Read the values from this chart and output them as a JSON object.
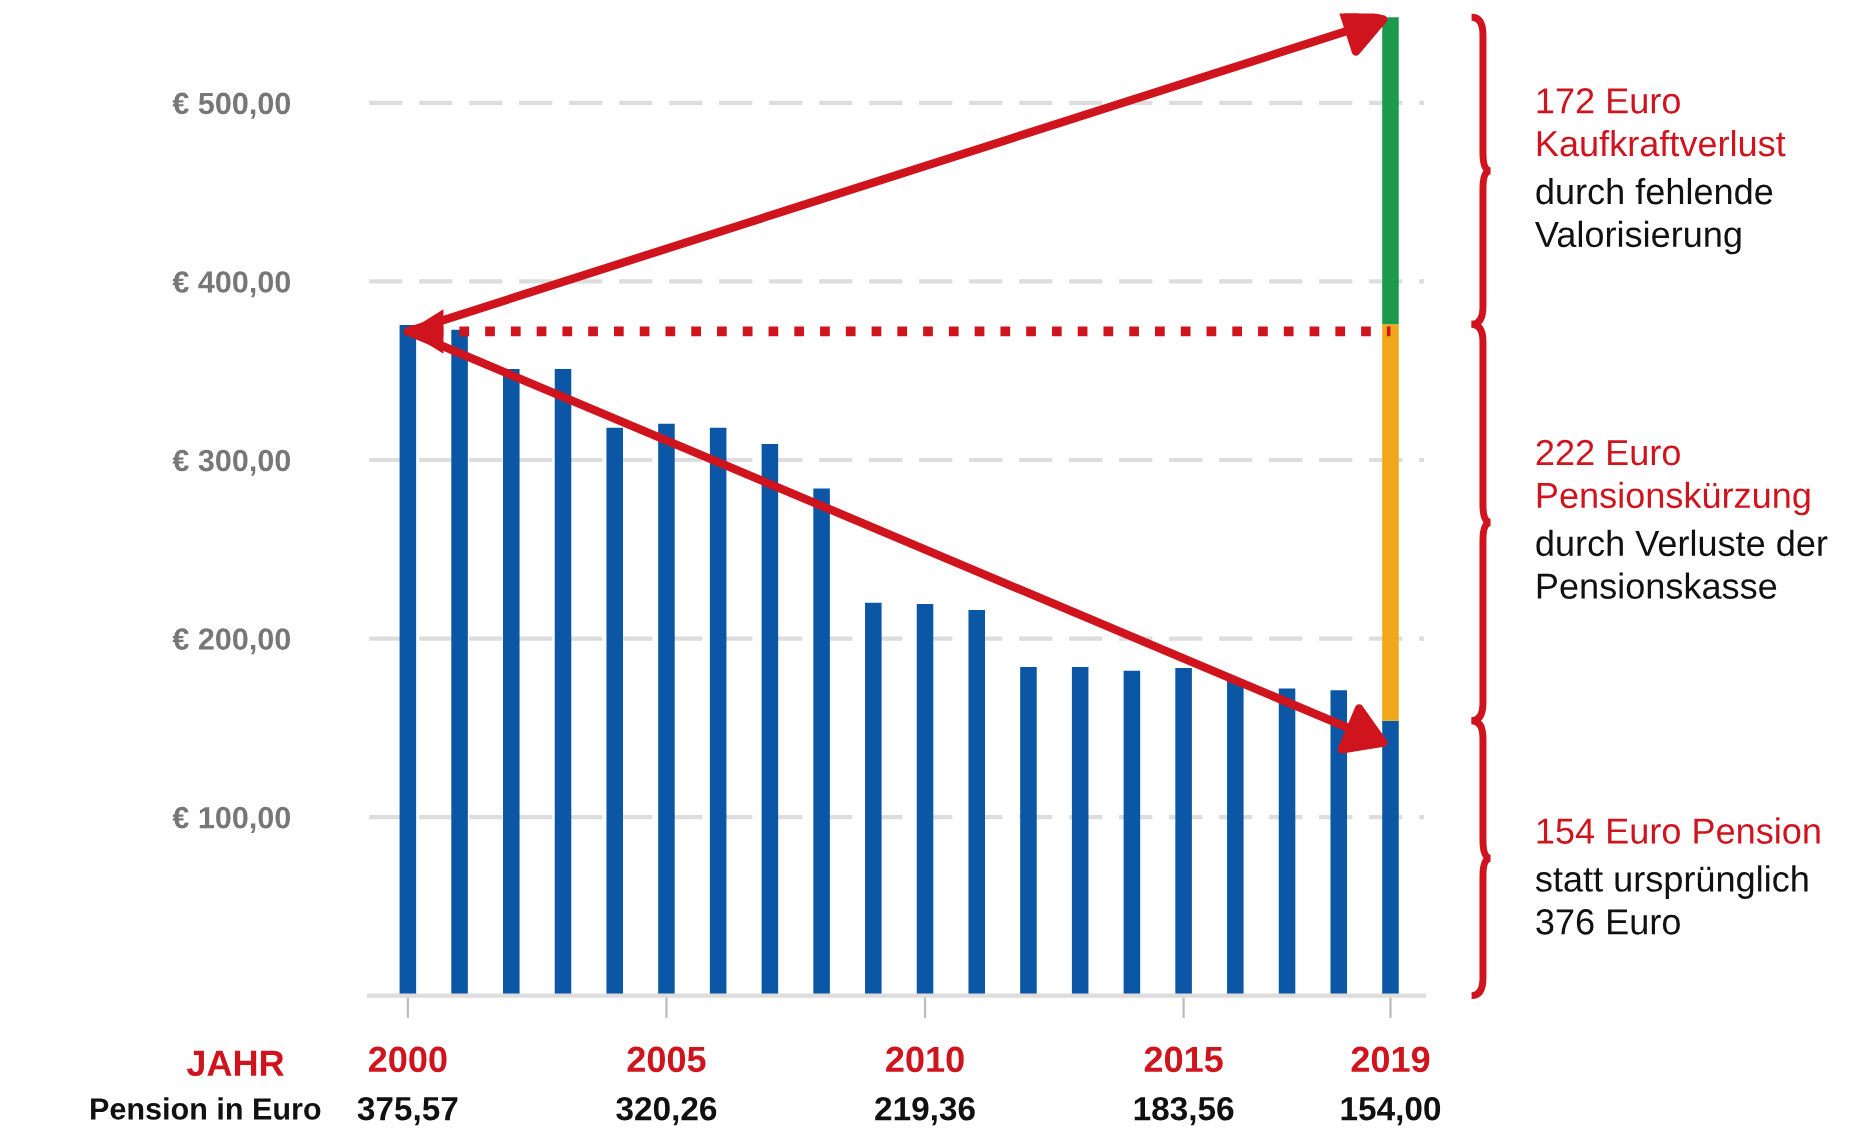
{
  "chart_data": {
    "type": "bar",
    "stacked": true,
    "xlabel": "JAHR",
    "categories": [
      "2000",
      null,
      null,
      null,
      null,
      "2005",
      null,
      null,
      null,
      null,
      "2010",
      null,
      null,
      null,
      null,
      "2015",
      null,
      null,
      null,
      "2019"
    ],
    "series": [
      {
        "color": "#0b57a6",
        "values": [
          375.57,
          373,
          351,
          351,
          318,
          320.26,
          318,
          309,
          284,
          220,
          219.36,
          216,
          184,
          184,
          182,
          183.56,
          177,
          172,
          171,
          154.0
        ],
        "value_labels": [
          "375,57",
          null,
          null,
          null,
          null,
          "320,26",
          null,
          null,
          null,
          null,
          "219,36",
          null,
          null,
          null,
          null,
          "183,56",
          null,
          null,
          null,
          "154,00"
        ]
      },
      {
        "color": "#f0a81a",
        "values": [
          null,
          null,
          null,
          null,
          null,
          null,
          null,
          null,
          null,
          null,
          null,
          null,
          null,
          null,
          null,
          null,
          null,
          null,
          null,
          222
        ]
      },
      {
        "color": "#1a9a4a",
        "values": [
          null,
          null,
          null,
          null,
          null,
          null,
          null,
          null,
          null,
          null,
          null,
          null,
          null,
          null,
          null,
          null,
          null,
          null,
          null,
          172
        ]
      }
    ],
    "ylim": [
      0,
      550
    ],
    "yticks": [
      {
        "value": 100,
        "label": "€ 100,00"
      },
      {
        "value": 200,
        "label": "€ 200,00"
      },
      {
        "value": 300,
        "label": "€ 300,00"
      },
      {
        "value": 400,
        "label": "€ 400,00"
      },
      {
        "value": 500,
        "label": "€ 500,00"
      }
    ],
    "grid": "y",
    "ref_lines": [
      {
        "axis": "y",
        "value": 372,
        "color": "#d0141e",
        "line_style": "dotted"
      }
    ],
    "annotations": [
      "172 Euro\nKaufkraftverlust",
      "durch fehlende\nValorisierung",
      "222 Euro\nPensionskürzung",
      "durch Verluste der\nPensionskasse",
      "154 Euro Pension",
      "statt ursprünglich\n376 Euro",
      "Pension in Euro"
    ]
  }
}
